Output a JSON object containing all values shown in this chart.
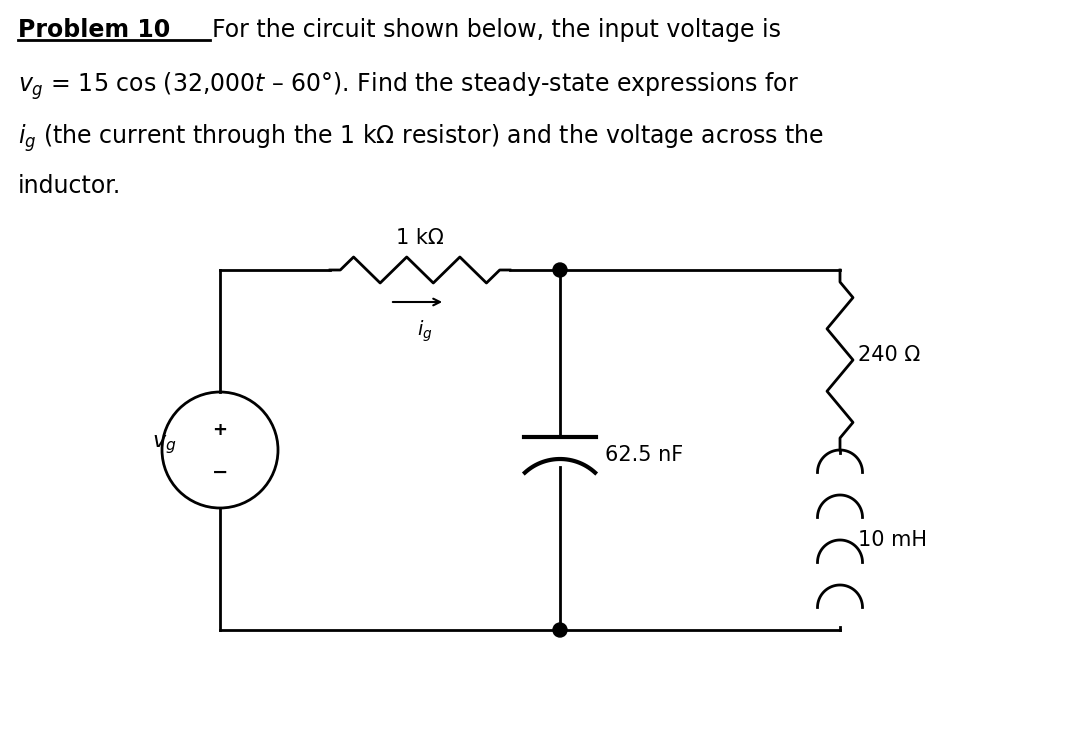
{
  "bg_color": "#ffffff",
  "text_color": "#000000",
  "resistor_label": "1 kΩ",
  "cap_label": "62.5 nF",
  "res2_label": "240 Ω",
  "ind_label": "10 mH"
}
